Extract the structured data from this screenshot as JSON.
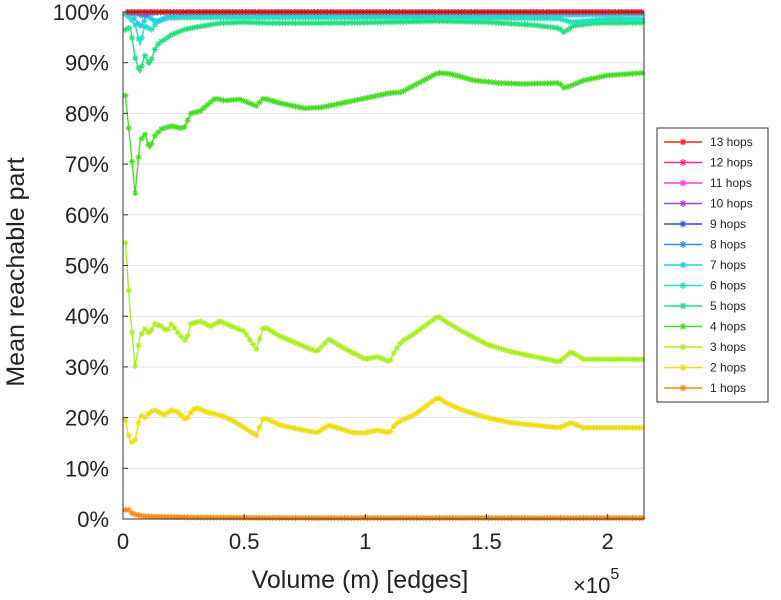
{
  "chart_data": {
    "type": "line",
    "title": "",
    "xlabel": "Volume (m) [edges]",
    "ylabel": "Mean reachable part",
    "x_exponent_label": "×10",
    "x_exponent_power": "5",
    "xlim": [
      0,
      2.15
    ],
    "ylim": [
      0,
      100
    ],
    "xticks": [
      0,
      0.5,
      1,
      1.5,
      2
    ],
    "xtick_labels": [
      "0",
      "0.5",
      "1",
      "1.5",
      "2"
    ],
    "yticks": [
      0,
      10,
      20,
      30,
      40,
      50,
      60,
      70,
      80,
      90,
      100
    ],
    "ytick_labels": [
      "0%",
      "10%",
      "20%",
      "30%",
      "40%",
      "50%",
      "60%",
      "70%",
      "80%",
      "90%",
      "100%"
    ],
    "grid": true,
    "legend_position": "right",
    "series": [
      {
        "name": "13 hops",
        "color": "#ff2222",
        "x": [
          0.02,
          0.5,
          1.0,
          1.5,
          2.15
        ],
        "values": [
          100,
          100,
          100,
          100,
          100
        ]
      },
      {
        "name": "12 hops",
        "color": "#ff2a8a",
        "x": [
          0.02,
          0.5,
          1.0,
          1.5,
          2.15
        ],
        "values": [
          100,
          100,
          100,
          100,
          100
        ]
      },
      {
        "name": "11 hops",
        "color": "#f03cf0",
        "x": [
          0.02,
          0.5,
          1.0,
          1.5,
          2.15
        ],
        "values": [
          100,
          100,
          100,
          100,
          100
        ]
      },
      {
        "name": "10 hops",
        "color": "#a040f0",
        "x": [
          0.02,
          0.5,
          1.0,
          1.5,
          2.15
        ],
        "values": [
          100,
          100,
          100,
          100,
          100
        ]
      },
      {
        "name": "9 hops",
        "color": "#3344e0",
        "x": [
          0.02,
          0.5,
          1.0,
          1.5,
          2.15
        ],
        "values": [
          100,
          100,
          100,
          100,
          100
        ]
      },
      {
        "name": "8 hops",
        "color": "#3388ee",
        "x": [
          0.02,
          0.06,
          0.08,
          0.12,
          0.2,
          0.5,
          1.0,
          1.5,
          2.15
        ],
        "values": [
          100,
          99.7,
          99.2,
          99.8,
          100,
          100,
          100,
          100,
          100
        ]
      },
      {
        "name": "7 hops",
        "color": "#22ccee",
        "x": [
          0.02,
          0.04,
          0.07,
          0.1,
          0.14,
          0.2,
          0.3,
          0.5,
          1.0,
          1.5,
          1.8,
          1.85,
          2.15
        ],
        "values": [
          99.8,
          99.4,
          97.0,
          99.2,
          98.0,
          99.4,
          99.7,
          99.7,
          99.6,
          99.6,
          99.5,
          99.4,
          99.6
        ]
      },
      {
        "name": "6 hops",
        "color": "#22dfc0",
        "x": [
          0.01,
          0.03,
          0.05,
          0.07,
          0.09,
          0.12,
          0.14,
          0.18,
          0.25,
          0.35,
          0.5,
          0.8,
          1.0,
          1.3,
          1.5,
          1.8,
          1.85,
          2.0,
          2.15
        ],
        "values": [
          99.5,
          98.8,
          97.5,
          93.5,
          97.2,
          96.5,
          98.2,
          98.8,
          98.9,
          98.9,
          98.9,
          98.9,
          98.9,
          98.9,
          98.8,
          98.7,
          98.0,
          98.6,
          98.6
        ]
      },
      {
        "name": "5 hops",
        "color": "#22e07a",
        "x": [
          0.01,
          0.03,
          0.05,
          0.07,
          0.09,
          0.11,
          0.13,
          0.15,
          0.17,
          0.2,
          0.25,
          0.3,
          0.4,
          0.5,
          0.6,
          0.8,
          1.0,
          1.2,
          1.3,
          1.5,
          1.7,
          1.8,
          1.82,
          1.86,
          1.95,
          2.15
        ],
        "values": [
          96.5,
          97.0,
          91.0,
          88.0,
          91.5,
          89.5,
          92.5,
          94.0,
          94.5,
          95.5,
          96.5,
          97.0,
          97.8,
          98.0,
          97.8,
          97.8,
          97.9,
          98.1,
          98.2,
          98.0,
          97.4,
          96.8,
          96.0,
          97.3,
          97.8,
          97.9
        ]
      },
      {
        "name": "4 hops",
        "color": "#44dd22",
        "x": [
          0.01,
          0.03,
          0.05,
          0.07,
          0.09,
          0.11,
          0.13,
          0.16,
          0.2,
          0.25,
          0.28,
          0.32,
          0.38,
          0.42,
          0.48,
          0.55,
          0.58,
          0.65,
          0.75,
          0.82,
          0.9,
          1.0,
          1.05,
          1.1,
          1.15,
          1.2,
          1.3,
          1.35,
          1.45,
          1.55,
          1.65,
          1.8,
          1.82,
          1.85,
          1.9,
          2.0,
          2.15
        ],
        "values": [
          83.5,
          74.0,
          64.0,
          74.5,
          76.0,
          73.0,
          75.5,
          77.0,
          77.5,
          77.0,
          80.0,
          80.5,
          83.0,
          82.5,
          82.8,
          81.5,
          83.0,
          82.0,
          81.0,
          81.2,
          82.0,
          83.0,
          83.5,
          84.0,
          84.2,
          85.5,
          88.0,
          87.8,
          86.5,
          86.0,
          85.8,
          86.0,
          85.0,
          85.5,
          86.5,
          87.5,
          88.0
        ]
      },
      {
        "name": "3 hops",
        "color": "#aaee22",
        "x": [
          0.01,
          0.03,
          0.05,
          0.07,
          0.09,
          0.11,
          0.13,
          0.16,
          0.18,
          0.2,
          0.23,
          0.26,
          0.28,
          0.32,
          0.36,
          0.4,
          0.45,
          0.5,
          0.55,
          0.58,
          0.65,
          0.75,
          0.8,
          0.85,
          0.9,
          1.0,
          1.05,
          1.1,
          1.12,
          1.15,
          1.2,
          1.3,
          1.33,
          1.4,
          1.5,
          1.6,
          1.7,
          1.8,
          1.85,
          1.9,
          2.0,
          2.15
        ],
        "values": [
          54.5,
          40.5,
          30.0,
          36.0,
          37.5,
          36.5,
          38.5,
          38.0,
          37.0,
          38.5,
          36.5,
          35.0,
          38.5,
          39.0,
          38.0,
          39.0,
          38.0,
          37.0,
          33.5,
          38.0,
          36.0,
          34.0,
          33.0,
          35.5,
          34.0,
          31.5,
          32.0,
          31.0,
          33.0,
          35.0,
          36.5,
          40.0,
          39.0,
          37.0,
          34.5,
          33.0,
          32.0,
          31.0,
          33.0,
          31.5,
          31.5,
          31.5
        ]
      },
      {
        "name": "2 hops",
        "color": "#eedd11",
        "x": [
          0.01,
          0.03,
          0.05,
          0.07,
          0.09,
          0.11,
          0.13,
          0.15,
          0.17,
          0.2,
          0.23,
          0.26,
          0.28,
          0.3,
          0.35,
          0.4,
          0.45,
          0.5,
          0.55,
          0.58,
          0.65,
          0.75,
          0.8,
          0.85,
          0.95,
          1.0,
          1.05,
          1.1,
          1.12,
          1.15,
          1.2,
          1.3,
          1.33,
          1.4,
          1.5,
          1.6,
          1.7,
          1.8,
          1.85,
          1.9,
          2.0,
          2.15
        ],
        "values": [
          19.5,
          15.0,
          15.5,
          20.5,
          20.0,
          21.0,
          21.5,
          21.0,
          20.5,
          21.5,
          21.0,
          19.5,
          21.0,
          22.0,
          21.0,
          20.5,
          19.5,
          18.0,
          16.5,
          20.0,
          18.5,
          17.5,
          17.0,
          18.5,
          17.0,
          17.0,
          17.5,
          17.0,
          18.5,
          19.5,
          20.5,
          24.0,
          23.0,
          21.5,
          20.0,
          19.0,
          18.5,
          18.0,
          19.0,
          18.0,
          18.0,
          18.0
        ]
      },
      {
        "name": "1 hops",
        "color": "#ff8811",
        "x": [
          0.01,
          0.02,
          0.04,
          0.06,
          0.08,
          0.12,
          0.2,
          0.3,
          0.5,
          0.8,
          1.0,
          1.5,
          2.15
        ],
        "values": [
          1.8,
          2.0,
          1.0,
          0.8,
          0.6,
          0.5,
          0.4,
          0.3,
          0.25,
          0.2,
          0.2,
          0.2,
          0.2
        ]
      }
    ]
  }
}
